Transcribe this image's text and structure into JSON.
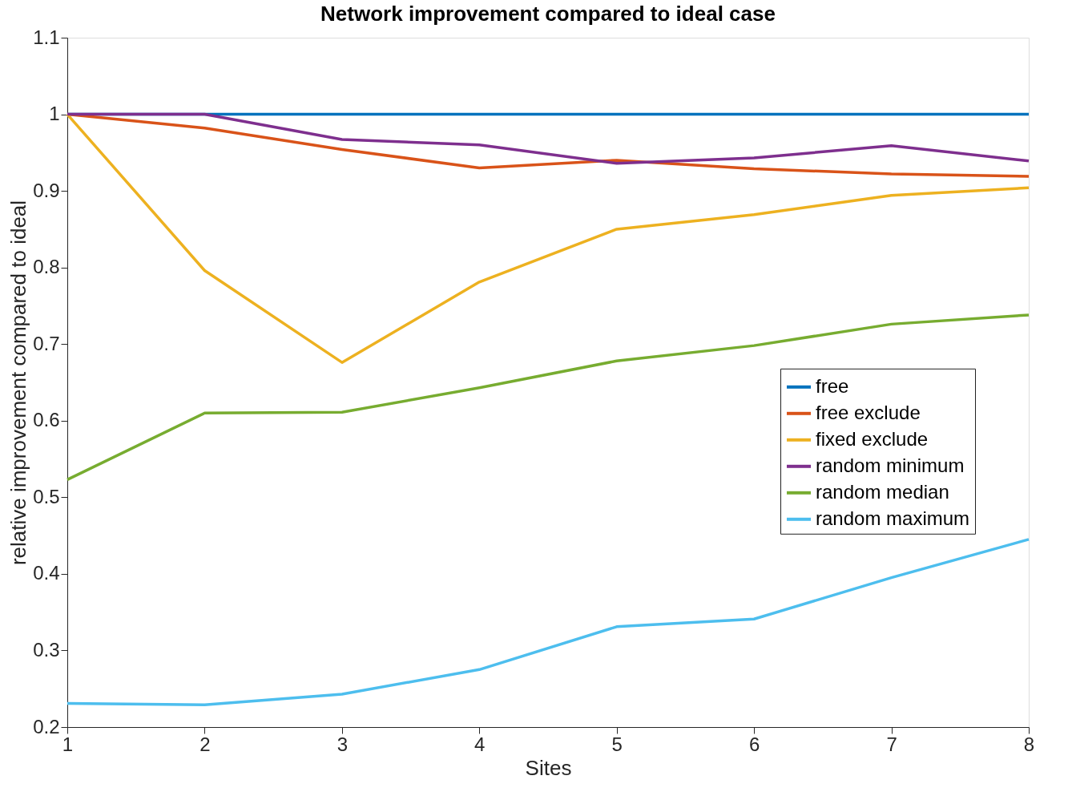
{
  "chart_data": {
    "type": "line",
    "title": "Network improvement compared to ideal case",
    "xlabel": "Sites",
    "ylabel": "relative improvement compared to ideal",
    "x": [
      1,
      2,
      3,
      4,
      5,
      6,
      7,
      8
    ],
    "xlim": [
      1,
      8
    ],
    "xticks": [
      1,
      2,
      3,
      4,
      5,
      6,
      7,
      8
    ],
    "ylim": [
      0.2,
      1.1
    ],
    "yticks": [
      0.2,
      0.3,
      0.4,
      0.5,
      0.6,
      0.7,
      0.8,
      0.9,
      1,
      1.1
    ],
    "grid": false,
    "legend": "right",
    "marker": "none",
    "line_style": "solid",
    "series": [
      {
        "name": "free",
        "color": "#0072bd",
        "values": [
          1,
          1,
          1,
          1,
          1,
          1,
          1,
          1
        ]
      },
      {
        "name": "free exclude",
        "color": "#d95319",
        "values": [
          1,
          0.982,
          0.954,
          0.93,
          0.94,
          0.929,
          0.922,
          0.919
        ]
      },
      {
        "name": "fixed exclude",
        "color": "#edb120",
        "values": [
          1,
          0.796,
          0.676,
          0.781,
          0.85,
          0.869,
          0.894,
          0.904
        ]
      },
      {
        "name": "random minimum",
        "color": "#7e2f8e",
        "values": [
          1,
          1,
          0.967,
          0.96,
          0.936,
          0.943,
          0.959,
          0.939
        ]
      },
      {
        "name": "random median",
        "color": "#77ac30",
        "values": [
          0.523,
          0.61,
          0.611,
          0.643,
          0.678,
          0.698,
          0.726,
          0.738
        ]
      },
      {
        "name": "random maximum",
        "color": "#4dbeee",
        "values": [
          0.231,
          0.229,
          0.243,
          0.275,
          0.331,
          0.341,
          0.395,
          0.445
        ]
      }
    ]
  }
}
